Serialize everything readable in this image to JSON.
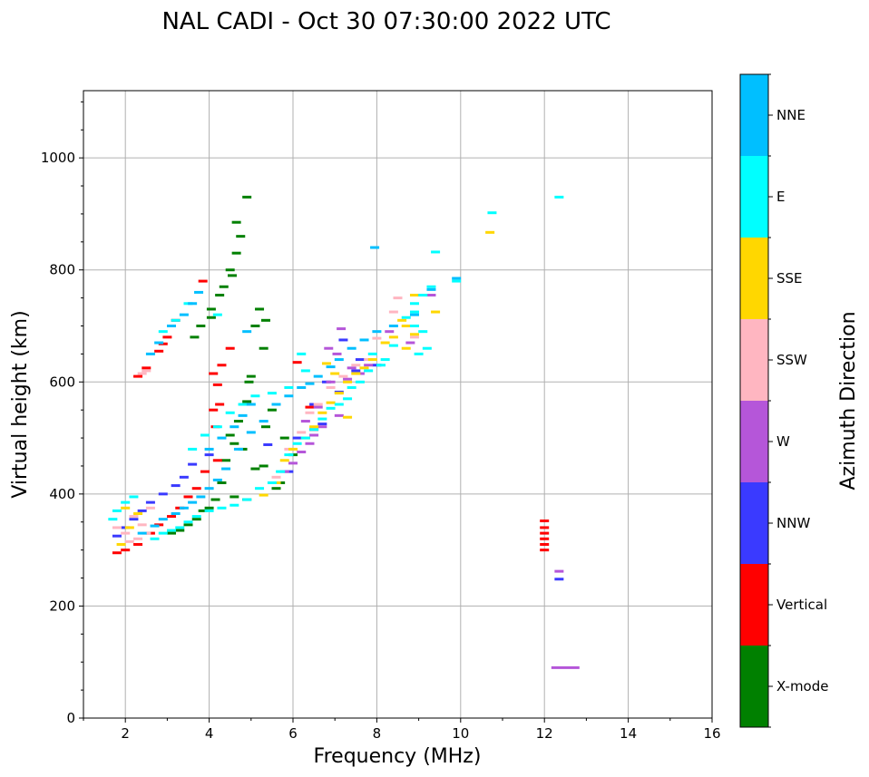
{
  "chart_data": {
    "type": "scatter",
    "title": "NAL CADI - Oct 30 07:30:00 2022 UTC",
    "xlabel": "Frequency (MHz)",
    "ylabel": "Virtual height (km)",
    "xlim": [
      1,
      16
    ],
    "ylim": [
      0,
      1120
    ],
    "xticks": [
      2,
      4,
      6,
      8,
      10,
      12,
      14,
      16
    ],
    "yticks": [
      0,
      200,
      400,
      600,
      800,
      1000
    ],
    "grid": true,
    "colorbar": {
      "title": "Azimuth Direction",
      "categories": [
        {
          "name": "X-mode",
          "color": "#008000"
        },
        {
          "name": "Vertical",
          "color": "#ff0000"
        },
        {
          "name": "NNW",
          "color": "#3a3aff"
        },
        {
          "name": "W",
          "color": "#b556d9"
        },
        {
          "name": "SSW",
          "color": "#ffb6c1"
        },
        {
          "name": "SSE",
          "color": "#ffd700"
        },
        {
          "name": "E",
          "color": "#00ffff"
        },
        {
          "name": "NNE",
          "color": "#00bfff"
        }
      ]
    },
    "series": [
      {
        "name": "X-mode",
        "points": [
          [
            4.9,
            930
          ],
          [
            4.65,
            885
          ],
          [
            4.75,
            860
          ],
          [
            4.65,
            830
          ],
          [
            4.5,
            800
          ],
          [
            4.55,
            790
          ],
          [
            4.35,
            770
          ],
          [
            4.25,
            755
          ],
          [
            4.05,
            730
          ],
          [
            4.05,
            715
          ],
          [
            3.8,
            700
          ],
          [
            3.65,
            680
          ],
          [
            4.95,
            600
          ],
          [
            4.9,
            565
          ],
          [
            4.7,
            530
          ],
          [
            4.5,
            505
          ],
          [
            4.6,
            490
          ],
          [
            4.4,
            460
          ],
          [
            4.3,
            420
          ],
          [
            4.15,
            390
          ],
          [
            4.0,
            375
          ],
          [
            3.85,
            370
          ],
          [
            3.7,
            355
          ],
          [
            3.5,
            345
          ],
          [
            3.3,
            335
          ],
          [
            3.1,
            330
          ],
          [
            5.3,
            660
          ],
          [
            5.1,
            700
          ],
          [
            5.2,
            730
          ],
          [
            5.35,
            710
          ],
          [
            5.0,
            610
          ],
          [
            5.35,
            520
          ],
          [
            5.5,
            550
          ],
          [
            5.8,
            500
          ],
          [
            6.0,
            470
          ],
          [
            5.7,
            420
          ],
          [
            5.6,
            410
          ],
          [
            4.8,
            480
          ],
          [
            5.1,
            445
          ],
          [
            5.3,
            450
          ],
          [
            4.6,
            395
          ],
          [
            4.9,
            390
          ]
        ]
      },
      {
        "name": "Vertical",
        "points": [
          [
            12.0,
            352
          ],
          [
            12.0,
            340
          ],
          [
            12.0,
            330
          ],
          [
            12.0,
            320
          ],
          [
            12.0,
            310
          ],
          [
            12.0,
            300
          ],
          [
            4.3,
            630
          ],
          [
            4.1,
            615
          ],
          [
            4.2,
            595
          ],
          [
            4.25,
            560
          ],
          [
            4.1,
            550
          ],
          [
            4.15,
            520
          ],
          [
            3.0,
            680
          ],
          [
            2.9,
            668
          ],
          [
            2.8,
            655
          ],
          [
            2.5,
            625
          ],
          [
            2.3,
            610
          ],
          [
            4.5,
            660
          ],
          [
            4.2,
            460
          ],
          [
            3.9,
            440
          ],
          [
            3.7,
            410
          ],
          [
            3.5,
            395
          ],
          [
            3.3,
            375
          ],
          [
            3.1,
            360
          ],
          [
            2.8,
            345
          ],
          [
            2.6,
            330
          ],
          [
            2.3,
            310
          ],
          [
            2.0,
            300
          ],
          [
            1.8,
            295
          ],
          [
            3.85,
            780
          ],
          [
            3.2,
            710
          ],
          [
            6.1,
            635
          ],
          [
            6.4,
            555
          ],
          [
            6.5,
            515
          ]
        ]
      },
      {
        "name": "NNW",
        "points": [
          [
            12.35,
            248
          ],
          [
            7.2,
            675
          ],
          [
            8.0,
            630
          ],
          [
            7.5,
            620
          ],
          [
            6.7,
            525
          ],
          [
            6.5,
            560
          ],
          [
            6.1,
            500
          ],
          [
            5.9,
            440
          ],
          [
            5.4,
            488
          ],
          [
            4.0,
            470
          ],
          [
            3.6,
            453
          ],
          [
            3.4,
            430
          ],
          [
            3.2,
            415
          ],
          [
            2.9,
            400
          ],
          [
            2.6,
            385
          ],
          [
            2.4,
            370
          ],
          [
            2.2,
            355
          ],
          [
            2.0,
            340
          ],
          [
            1.8,
            325
          ],
          [
            7.6,
            640
          ],
          [
            6.8,
            600
          ],
          [
            7.1,
            582
          ]
        ]
      },
      {
        "name": "W",
        "points": [
          [
            12.35,
            262
          ],
          [
            12.5,
            90
          ],
          [
            7.15,
            695
          ],
          [
            6.85,
            660
          ],
          [
            7.05,
            650
          ],
          [
            7.8,
            630
          ],
          [
            7.4,
            625
          ],
          [
            7.3,
            605
          ],
          [
            6.9,
            600
          ],
          [
            7.1,
            540
          ],
          [
            6.7,
            520
          ],
          [
            6.5,
            505
          ],
          [
            6.4,
            490
          ],
          [
            6.2,
            475
          ],
          [
            6.0,
            455
          ],
          [
            5.8,
            440
          ],
          [
            7.6,
            615
          ],
          [
            8.3,
            690
          ],
          [
            8.8,
            670
          ],
          [
            9.3,
            755
          ],
          [
            6.6,
            555
          ],
          [
            6.3,
            530
          ]
        ]
      },
      {
        "name": "SSW",
        "points": [
          [
            8.5,
            750
          ],
          [
            8.4,
            725
          ],
          [
            8.9,
            680
          ],
          [
            8.0,
            678
          ],
          [
            7.8,
            640
          ],
          [
            7.5,
            630
          ],
          [
            7.2,
            610
          ],
          [
            6.9,
            590
          ],
          [
            6.6,
            560
          ],
          [
            6.4,
            545
          ],
          [
            6.2,
            510
          ],
          [
            5.9,
            480
          ],
          [
            5.6,
            430
          ],
          [
            2.5,
            330
          ],
          [
            2.3,
            320
          ],
          [
            2.1,
            315
          ],
          [
            2.4,
            345
          ],
          [
            2.0,
            330
          ],
          [
            1.8,
            340
          ],
          [
            2.2,
            360
          ],
          [
            2.6,
            375
          ],
          [
            2.5,
            620
          ],
          [
            2.4,
            615
          ]
        ]
      },
      {
        "name": "SSE",
        "points": [
          [
            10.7,
            867
          ],
          [
            9.4,
            725
          ],
          [
            8.6,
            710
          ],
          [
            8.7,
            700
          ],
          [
            8.9,
            685
          ],
          [
            8.7,
            660
          ],
          [
            8.4,
            680
          ],
          [
            8.2,
            670
          ],
          [
            7.9,
            640
          ],
          [
            7.7,
            625
          ],
          [
            7.5,
            615
          ],
          [
            7.3,
            600
          ],
          [
            7.1,
            580
          ],
          [
            6.9,
            563
          ],
          [
            6.7,
            545
          ],
          [
            6.5,
            520
          ],
          [
            6.3,
            500
          ],
          [
            6.0,
            480
          ],
          [
            5.8,
            460
          ],
          [
            5.6,
            420
          ],
          [
            5.3,
            398
          ],
          [
            7.3,
            537
          ],
          [
            6.8,
            633
          ],
          [
            7.0,
            615
          ],
          [
            8.9,
            755
          ],
          [
            1.9,
            310
          ],
          [
            2.1,
            340
          ],
          [
            2.3,
            365
          ],
          [
            2.0,
            375
          ]
        ]
      },
      {
        "name": "E",
        "points": [
          [
            10.75,
            902
          ],
          [
            12.35,
            930
          ],
          [
            9.4,
            832
          ],
          [
            9.9,
            780
          ],
          [
            9.3,
            770
          ],
          [
            9.1,
            755
          ],
          [
            8.9,
            740
          ],
          [
            8.9,
            725
          ],
          [
            8.7,
            715
          ],
          [
            8.9,
            700
          ],
          [
            9.1,
            690
          ],
          [
            9.2,
            660
          ],
          [
            9.0,
            650
          ],
          [
            8.4,
            665
          ],
          [
            8.2,
            640
          ],
          [
            8.1,
            630
          ],
          [
            7.9,
            650
          ],
          [
            7.8,
            620
          ],
          [
            7.6,
            600
          ],
          [
            7.4,
            590
          ],
          [
            7.3,
            570
          ],
          [
            7.1,
            560
          ],
          [
            6.9,
            553
          ],
          [
            6.7,
            534
          ],
          [
            6.5,
            515
          ],
          [
            6.3,
            500
          ],
          [
            6.1,
            490
          ],
          [
            5.9,
            470
          ],
          [
            5.7,
            440
          ],
          [
            5.5,
            420
          ],
          [
            5.2,
            410
          ],
          [
            4.9,
            390
          ],
          [
            4.6,
            380
          ],
          [
            4.3,
            375
          ],
          [
            4.0,
            370
          ],
          [
            3.7,
            360
          ],
          [
            3.5,
            350
          ],
          [
            3.3,
            340
          ],
          [
            3.1,
            335
          ],
          [
            2.9,
            330
          ],
          [
            2.7,
            320
          ],
          [
            4.2,
            720
          ],
          [
            3.5,
            740
          ],
          [
            3.2,
            710
          ],
          [
            2.9,
            690
          ],
          [
            6.2,
            650
          ],
          [
            6.3,
            620
          ],
          [
            5.9,
            590
          ],
          [
            5.5,
            580
          ],
          [
            5.1,
            575
          ],
          [
            4.8,
            560
          ],
          [
            4.5,
            545
          ],
          [
            4.2,
            520
          ],
          [
            3.9,
            505
          ],
          [
            3.6,
            480
          ],
          [
            2.0,
            385
          ],
          [
            1.8,
            370
          ],
          [
            1.7,
            355
          ],
          [
            2.2,
            395
          ]
        ]
      },
      {
        "name": "NNE",
        "points": [
          [
            7.95,
            840
          ],
          [
            9.9,
            785
          ],
          [
            9.3,
            765
          ],
          [
            8.9,
            720
          ],
          [
            8.4,
            700
          ],
          [
            8.0,
            690
          ],
          [
            7.7,
            675
          ],
          [
            7.4,
            660
          ],
          [
            7.1,
            640
          ],
          [
            6.9,
            627
          ],
          [
            6.6,
            610
          ],
          [
            6.4,
            597
          ],
          [
            6.2,
            590
          ],
          [
            5.9,
            575
          ],
          [
            5.6,
            560
          ],
          [
            5.3,
            530
          ],
          [
            5.0,
            510
          ],
          [
            4.7,
            480
          ],
          [
            4.4,
            445
          ],
          [
            4.2,
            425
          ],
          [
            4.0,
            410
          ],
          [
            3.8,
            395
          ],
          [
            3.6,
            385
          ],
          [
            3.4,
            375
          ],
          [
            3.2,
            365
          ],
          [
            2.9,
            355
          ],
          [
            2.7,
            343
          ],
          [
            2.4,
            330
          ],
          [
            3.75,
            760
          ],
          [
            3.6,
            740
          ],
          [
            3.4,
            720
          ],
          [
            3.1,
            700
          ],
          [
            2.8,
            670
          ],
          [
            2.6,
            650
          ],
          [
            4.9,
            690
          ],
          [
            5.0,
            560
          ],
          [
            4.8,
            540
          ],
          [
            4.6,
            520
          ],
          [
            4.3,
            500
          ],
          [
            4.0,
            480
          ]
        ]
      }
    ]
  }
}
